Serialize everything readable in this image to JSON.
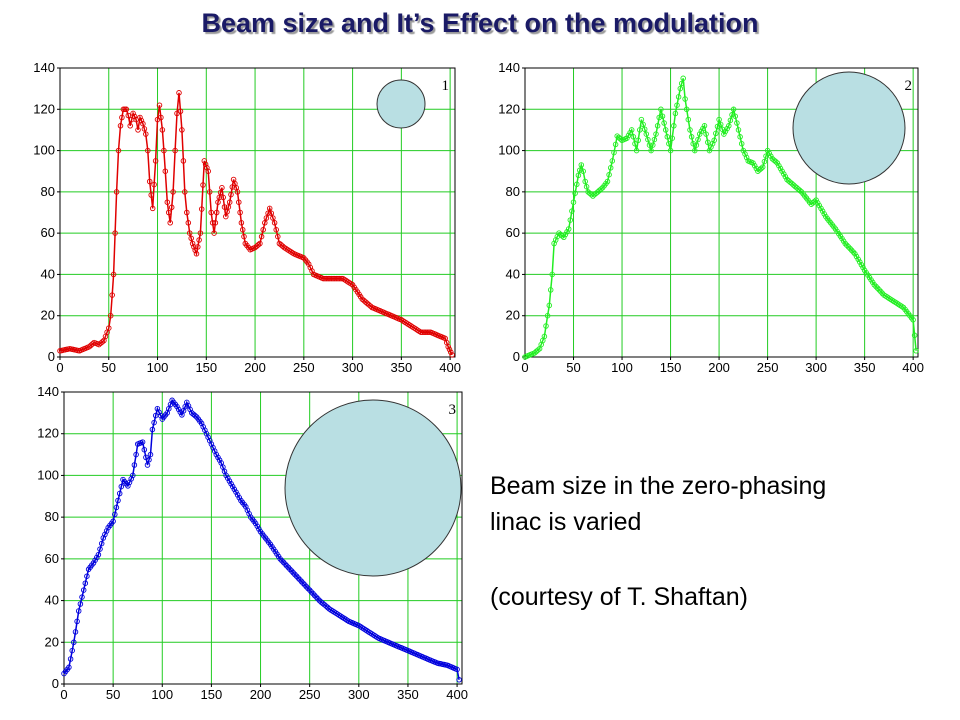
{
  "title": "Beam size and It’s Effect on the modulation",
  "caption": {
    "line1": "Beam size in the zero-phasing",
    "line2": "linac is varied",
    "credit": "(courtesy of T. Shaftan)"
  },
  "colors": {
    "grid": "#22cc22",
    "circle_fill": "#b9dfe3",
    "series_1": "#e00000",
    "series_2": "#22ee22",
    "series_3": "#0000dd"
  },
  "chart_data": [
    {
      "type": "line",
      "panel_label": "1",
      "color": "#e00000",
      "xlim": [
        0,
        405
      ],
      "ylim": [
        0,
        140
      ],
      "xticks": [
        0,
        50,
        100,
        150,
        200,
        250,
        300,
        350,
        400
      ],
      "yticks": [
        0,
        20,
        40,
        60,
        80,
        100,
        120,
        140
      ],
      "grid": true,
      "x": [
        0,
        10,
        20,
        30,
        35,
        40,
        45,
        50,
        52,
        55,
        58,
        60,
        62,
        65,
        68,
        70,
        72,
        75,
        78,
        80,
        82,
        85,
        88,
        90,
        92,
        95,
        98,
        100,
        102,
        105,
        108,
        110,
        113,
        116,
        118,
        120,
        122,
        125,
        128,
        130,
        133,
        136,
        140,
        144,
        148,
        152,
        155,
        158,
        162,
        166,
        170,
        174,
        178,
        182,
        186,
        190,
        195,
        200,
        205,
        210,
        215,
        220,
        225,
        230,
        240,
        250,
        255,
        260,
        270,
        280,
        290,
        300,
        310,
        320,
        330,
        340,
        350,
        360,
        370,
        380,
        385,
        390,
        395,
        398,
        402
      ],
      "y": [
        3,
        4,
        3,
        5,
        7,
        6,
        8,
        14,
        20,
        40,
        80,
        100,
        112,
        120,
        120,
        117,
        112,
        118,
        115,
        110,
        116,
        113,
        108,
        100,
        85,
        72,
        95,
        115,
        122,
        110,
        90,
        75,
        65,
        80,
        100,
        118,
        128,
        110,
        80,
        70,
        60,
        55,
        50,
        60,
        95,
        90,
        70,
        60,
        75,
        82,
        68,
        75,
        86,
        80,
        65,
        55,
        52,
        53,
        55,
        65,
        72,
        65,
        55,
        53,
        50,
        48,
        45,
        40,
        38,
        38,
        38,
        35,
        28,
        24,
        22,
        20,
        18,
        15,
        12,
        12,
        11,
        10,
        9,
        5,
        1
      ]
    },
    {
      "type": "line",
      "panel_label": "2",
      "color": "#22ee22",
      "xlim": [
        0,
        405
      ],
      "ylim": [
        0,
        140
      ],
      "xticks": [
        0,
        50,
        100,
        150,
        200,
        250,
        300,
        350,
        400
      ],
      "yticks": [
        0,
        20,
        40,
        60,
        80,
        100,
        120,
        140
      ],
      "grid": true,
      "x": [
        0,
        5,
        10,
        15,
        20,
        25,
        28,
        30,
        35,
        40,
        45,
        50,
        55,
        58,
        60,
        62,
        65,
        70,
        75,
        80,
        85,
        90,
        95,
        100,
        105,
        110,
        115,
        120,
        125,
        130,
        135,
        140,
        145,
        150,
        155,
        160,
        163,
        165,
        170,
        175,
        180,
        185,
        190,
        195,
        200,
        205,
        210,
        215,
        220,
        225,
        230,
        235,
        240,
        245,
        250,
        255,
        260,
        265,
        270,
        275,
        280,
        285,
        290,
        295,
        300,
        305,
        310,
        320,
        330,
        340,
        350,
        360,
        370,
        380,
        390,
        400,
        403
      ],
      "y": [
        0,
        1,
        2,
        4,
        10,
        25,
        40,
        55,
        60,
        58,
        62,
        75,
        88,
        93,
        90,
        85,
        80,
        78,
        80,
        82,
        85,
        95,
        107,
        105,
        106,
        110,
        100,
        115,
        108,
        100,
        108,
        120,
        110,
        100,
        118,
        130,
        135,
        125,
        110,
        100,
        108,
        112,
        100,
        105,
        115,
        108,
        112,
        120,
        110,
        100,
        95,
        94,
        90,
        92,
        100,
        96,
        94,
        90,
        86,
        84,
        82,
        80,
        77,
        74,
        76,
        72,
        68,
        62,
        55,
        50,
        42,
        35,
        30,
        27,
        24,
        18,
        3
      ]
    },
    {
      "type": "line",
      "panel_label": "3",
      "color": "#0000dd",
      "xlim": [
        0,
        405
      ],
      "ylim": [
        0,
        140
      ],
      "xticks": [
        0,
        50,
        100,
        150,
        200,
        250,
        300,
        350,
        400
      ],
      "yticks": [
        0,
        20,
        40,
        60,
        80,
        100,
        120,
        140
      ],
      "grid": true,
      "x": [
        0,
        5,
        10,
        15,
        20,
        25,
        30,
        35,
        40,
        45,
        50,
        55,
        60,
        65,
        70,
        75,
        80,
        85,
        88,
        90,
        95,
        100,
        105,
        110,
        115,
        120,
        125,
        130,
        135,
        140,
        145,
        150,
        155,
        160,
        165,
        170,
        175,
        180,
        185,
        190,
        195,
        200,
        210,
        220,
        230,
        240,
        250,
        260,
        270,
        280,
        290,
        300,
        310,
        320,
        330,
        340,
        350,
        360,
        370,
        380,
        390,
        400,
        402
      ],
      "y": [
        5,
        8,
        20,
        35,
        45,
        55,
        58,
        62,
        70,
        75,
        78,
        88,
        98,
        95,
        100,
        115,
        116,
        105,
        110,
        122,
        132,
        127,
        130,
        136,
        133,
        129,
        135,
        130,
        128,
        125,
        120,
        115,
        110,
        106,
        100,
        96,
        92,
        88,
        85,
        80,
        77,
        73,
        67,
        60,
        55,
        50,
        45,
        40,
        36,
        33,
        30,
        28,
        25,
        22,
        20,
        18,
        16,
        14,
        12,
        10,
        9,
        7,
        2
      ]
    }
  ]
}
